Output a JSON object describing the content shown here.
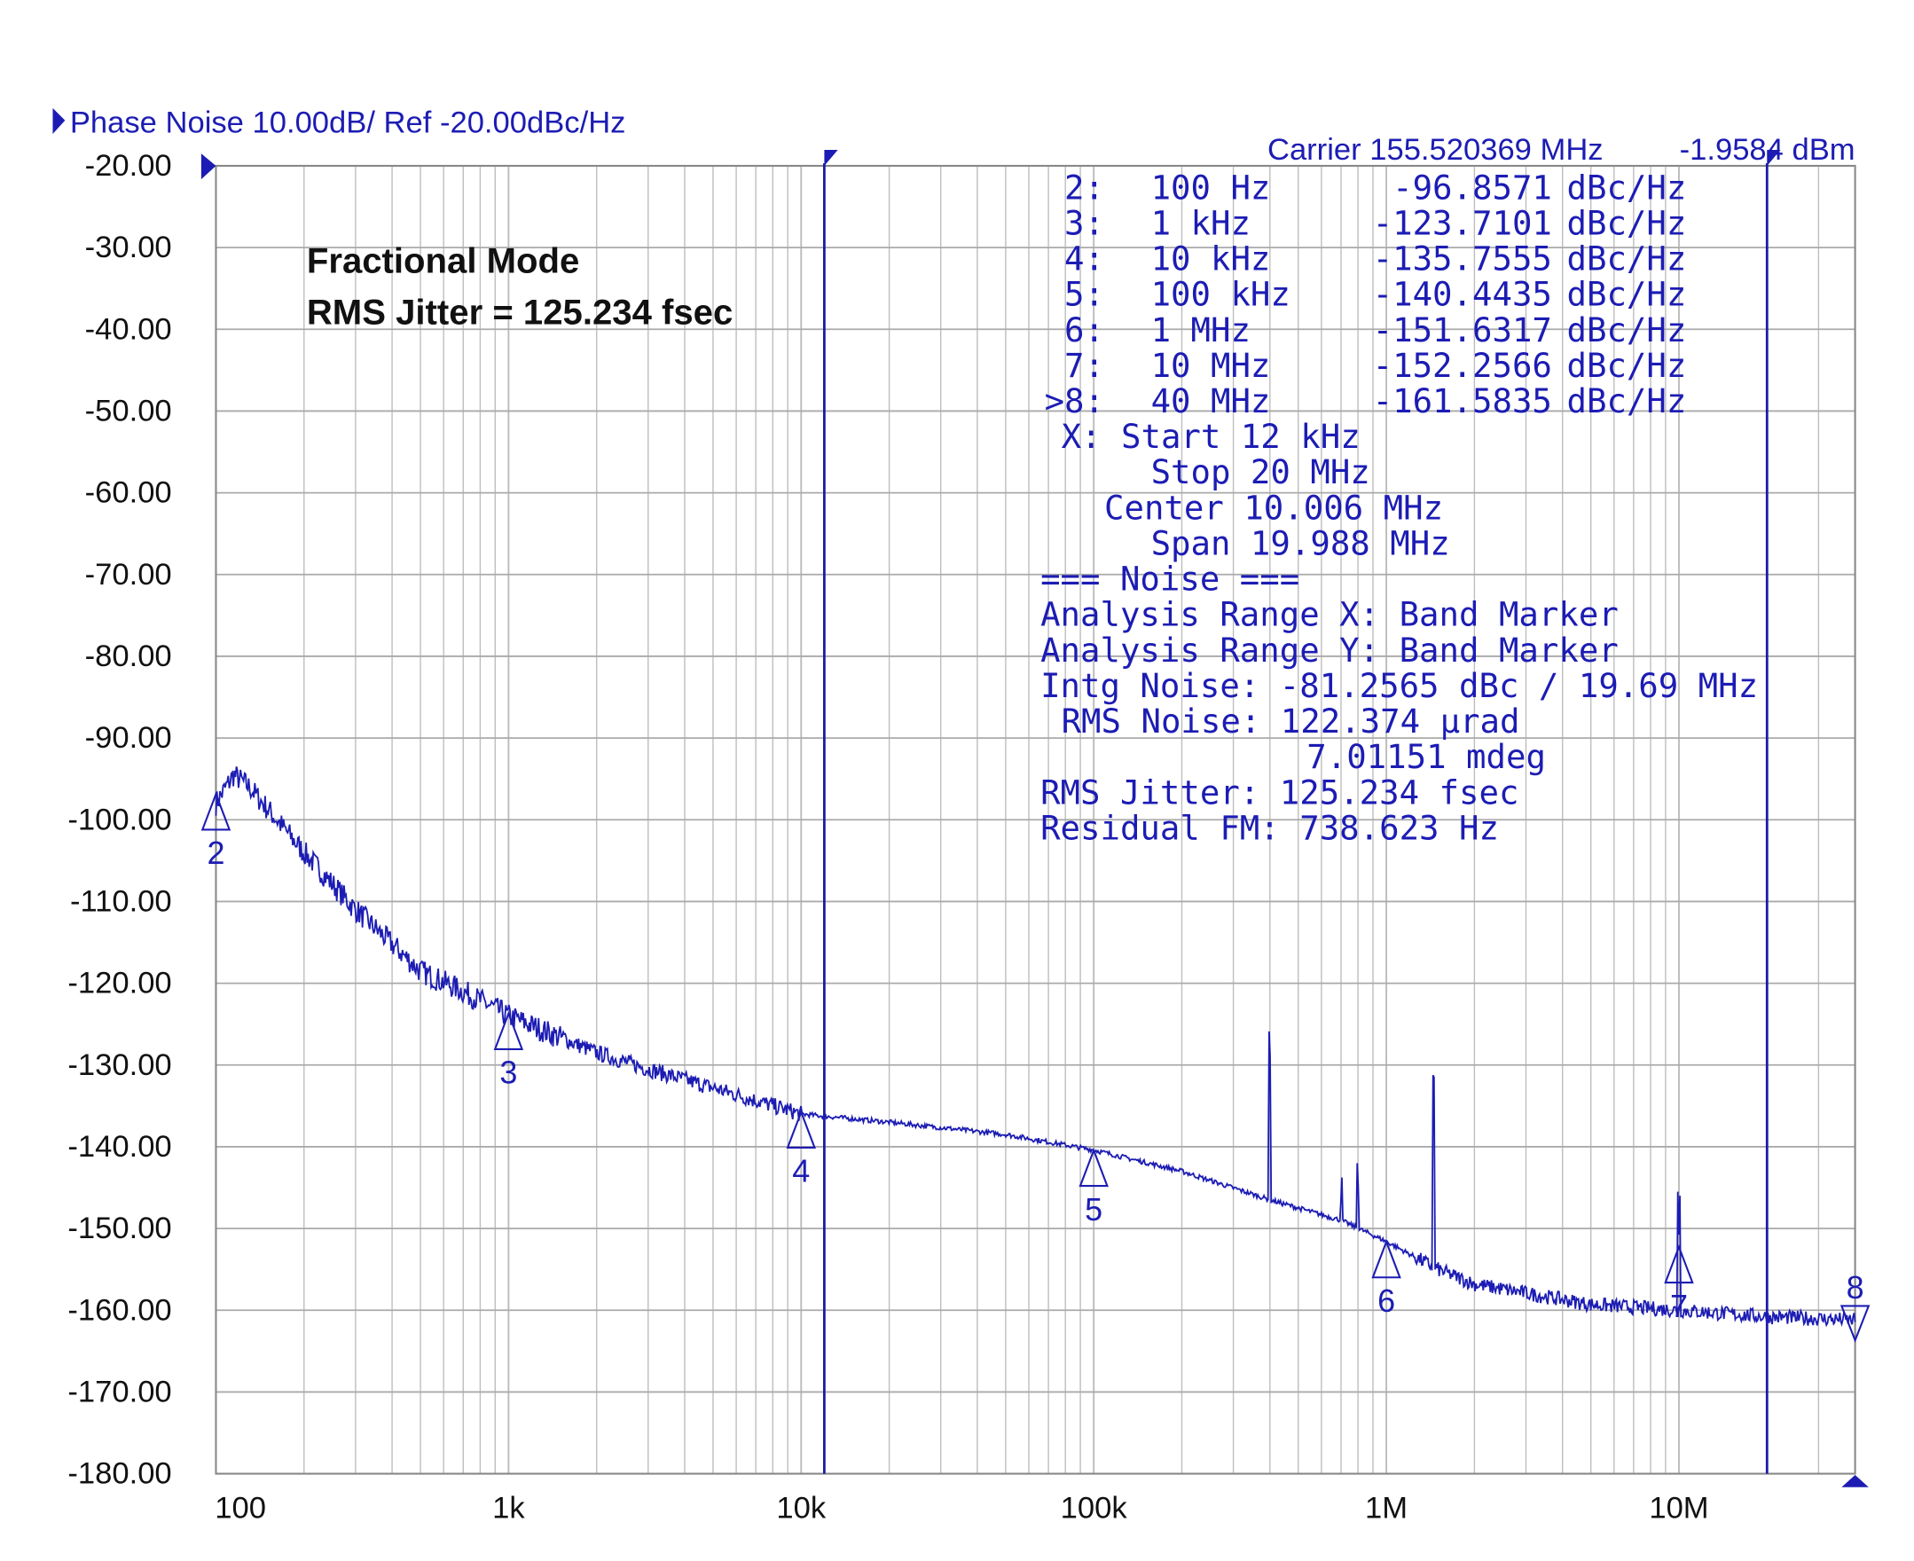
{
  "header": {
    "title": "Phase Noise 10.00dB/ Ref -20.00dBc/Hz",
    "carrier": "Carrier 155.520369 MHz",
    "carrier_power": "-1.9584 dBm"
  },
  "annotation": {
    "line1": "Fractional Mode",
    "line2": "RMS Jitter = 125.234 fsec"
  },
  "markers": [
    {
      "id": "2:",
      "freq": "100 Hz",
      "value": "-96.8571",
      "unit": "dBc/Hz",
      "num": "2"
    },
    {
      "id": "3:",
      "freq": "1 kHz",
      "value": "-123.7101",
      "unit": "dBc/Hz",
      "num": "3"
    },
    {
      "id": "4:",
      "freq": "10 kHz",
      "value": "-135.7555",
      "unit": "dBc/Hz",
      "num": "4"
    },
    {
      "id": "5:",
      "freq": "100 kHz",
      "value": "-140.4435",
      "unit": "dBc/Hz",
      "num": "5"
    },
    {
      "id": "6:",
      "freq": "1 MHz",
      "value": "-151.6317",
      "unit": "dBc/Hz",
      "num": "6"
    },
    {
      "id": "7:",
      "freq": "10 MHz",
      "value": "-152.2566",
      "unit": "dBc/Hz",
      "num": "7"
    },
    {
      "id": ">8:",
      "freq": "40 MHz",
      "value": "-161.5835",
      "unit": "dBc/Hz",
      "num": "8"
    }
  ],
  "range": {
    "start": "X: Start 12 kHz",
    "stop": "Stop 20 MHz",
    "center": "Center 10.006 MHz",
    "span": "Span 19.988 MHz"
  },
  "noise": {
    "heading": "=== Noise ===",
    "analysis_x": "Analysis Range X: Band Marker",
    "analysis_y": "Analysis Range Y: Band Marker",
    "intg_noise": "Intg Noise: -81.2565 dBc / 19.69 MHz",
    "rms_noise": "RMS Noise: 122.374 µrad",
    "rms_noise_deg": "7.01151 mdeg",
    "rms_jitter": "RMS Jitter: 125.234 fsec",
    "residual_fm": "Residual FM: 738.623 Hz"
  },
  "chart_data": {
    "type": "line",
    "title": "Phase Noise 10.00dB/ Ref -20.00dBc/Hz",
    "x_scale": "log",
    "xlim": [
      100,
      40000000
    ],
    "ylim": [
      -180,
      -20
    ],
    "x_ticks": [
      {
        "value": 100,
        "label": "100"
      },
      {
        "value": 1000,
        "label": "1k"
      },
      {
        "value": 10000,
        "label": "10k"
      },
      {
        "value": 100000,
        "label": "100k"
      },
      {
        "value": 1000000,
        "label": "1M"
      },
      {
        "value": 10000000,
        "label": "10M"
      }
    ],
    "y_ticks": [
      "-20.00",
      "-30.00",
      "-40.00",
      "-50.00",
      "-60.00",
      "-70.00",
      "-80.00",
      "-90.00",
      "-100.00",
      "-110.00",
      "-120.00",
      "-130.00",
      "-140.00",
      "-150.00",
      "-160.00",
      "-170.00",
      "-180.00"
    ],
    "grid": true,
    "trace_color": "#1c1cb4",
    "band_markers_hz": [
      12000,
      20000000
    ],
    "marker_points": [
      [
        100,
        -96.86
      ],
      [
        1000,
        -123.71
      ],
      [
        10000,
        -135.76
      ],
      [
        100000,
        -140.44
      ],
      [
        1000000,
        -151.63
      ],
      [
        10000000,
        -152.26
      ],
      [
        40000000,
        -161.58
      ]
    ],
    "trace": [
      [
        100,
        -98
      ],
      [
        115,
        -94.5
      ],
      [
        130,
        -96
      ],
      [
        200,
        -104
      ],
      [
        300,
        -111
      ],
      [
        500,
        -118.5
      ],
      [
        700,
        -121
      ],
      [
        1000,
        -124
      ],
      [
        2000,
        -128.5
      ],
      [
        3000,
        -130.5
      ],
      [
        5000,
        -132.8
      ],
      [
        10000,
        -136
      ],
      [
        20000,
        -137
      ],
      [
        50000,
        -138.5
      ],
      [
        100000,
        -140.4
      ],
      [
        200000,
        -143
      ],
      [
        400000,
        -146.5
      ],
      [
        700000,
        -149
      ],
      [
        1000000,
        -151.6
      ],
      [
        1500000,
        -155
      ],
      [
        2000000,
        -156.8
      ],
      [
        5000000,
        -159.3
      ],
      [
        10000000,
        -160
      ],
      [
        20000000,
        -160.8
      ],
      [
        40000000,
        -161.2
      ]
    ],
    "spurs": [
      [
        400000,
        -130
      ],
      [
        700000,
        -148
      ],
      [
        800000,
        -146
      ],
      [
        1450000,
        -134
      ],
      [
        10000000,
        -151
      ]
    ]
  }
}
